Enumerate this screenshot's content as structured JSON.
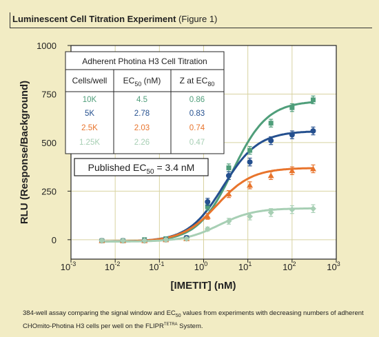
{
  "header": {
    "title_bold": "Luminescent Cell Titration Experiment",
    "title_rest": " (Figure 1)"
  },
  "chart_data": {
    "type": "scatter",
    "xscale": "log",
    "xlim": [
      0.001,
      1000
    ],
    "ylim": [
      -100,
      1000
    ],
    "xlabel": "[IMETIT] (nM)",
    "ylabel": "RLU (Response/Background)",
    "xticks": [
      "10-3",
      "10-2",
      "10-1",
      "100",
      "101",
      "102",
      "103"
    ],
    "yticks": [
      "0",
      "250",
      "500",
      "750",
      "1000"
    ],
    "grid": true,
    "table": {
      "title": "Adherent Photina H3 Cell Titration",
      "headers": [
        "Cells/well",
        "EC50 (nM)",
        "Z at EC80"
      ],
      "rows": [
        [
          "10K",
          "4.5",
          "0.86"
        ],
        [
          "5K",
          "2.78",
          "0.83"
        ],
        [
          "2.5K",
          "2.03",
          "0.74"
        ],
        [
          "1.25K",
          "2.26",
          "0.47"
        ]
      ]
    },
    "annotation": "Published EC50 = 3.4 nM",
    "series": [
      {
        "name": "10K",
        "color": "#4f9e7a",
        "marker": "square",
        "x": [
          0.005,
          0.015,
          0.046,
          0.14,
          0.41,
          1.23,
          3.7,
          11.1,
          33.3,
          100,
          300
        ],
        "y": [
          -5,
          -5,
          0,
          5,
          10,
          170,
          370,
          460,
          600,
          680,
          720
        ],
        "err": [
          8,
          8,
          8,
          8,
          8,
          18,
          20,
          20,
          20,
          20,
          20
        ]
      },
      {
        "name": "5K",
        "color": "#25508f",
        "marker": "circle",
        "x": [
          0.005,
          0.015,
          0.046,
          0.14,
          0.41,
          1.23,
          3.7,
          11.1,
          33.3,
          100,
          300
        ],
        "y": [
          -5,
          -5,
          -5,
          0,
          10,
          195,
          330,
          400,
          510,
          540,
          560
        ],
        "err": [
          8,
          8,
          8,
          8,
          8,
          18,
          20,
          20,
          20,
          20,
          20
        ]
      },
      {
        "name": "2.5K",
        "color": "#e8742c",
        "marker": "triangle",
        "x": [
          0.005,
          0.015,
          0.046,
          0.14,
          0.41,
          1.23,
          3.7,
          11.1,
          33.3,
          100,
          300
        ],
        "y": [
          -5,
          -5,
          -5,
          0,
          5,
          120,
          235,
          280,
          330,
          355,
          365
        ],
        "err": [
          8,
          8,
          8,
          8,
          8,
          15,
          18,
          18,
          20,
          20,
          20
        ]
      },
      {
        "name": "1.25K",
        "color": "#a7cfb4",
        "marker": "diamond",
        "x": [
          0.005,
          0.015,
          0.046,
          0.14,
          0.41,
          1.23,
          3.7,
          11.1,
          33.3,
          100,
          300
        ],
        "y": [
          -5,
          -5,
          -5,
          0,
          5,
          55,
          95,
          120,
          140,
          155,
          160
        ],
        "err": [
          8,
          8,
          8,
          8,
          8,
          10,
          15,
          18,
          20,
          20,
          20
        ]
      }
    ],
    "fits": [
      {
        "name": "10K",
        "color": "#4f9e7a",
        "bottom": -10,
        "top": 715,
        "ec50": 4.5,
        "hill": 1.1
      },
      {
        "name": "5K",
        "color": "#25508f",
        "bottom": -10,
        "top": 560,
        "ec50": 2.78,
        "hill": 1.1
      },
      {
        "name": "2.5K",
        "color": "#e8742c",
        "bottom": -10,
        "top": 370,
        "ec50": 2.03,
        "hill": 1.1
      },
      {
        "name": "1.25K",
        "color": "#a7cfb4",
        "bottom": -10,
        "top": 162,
        "ec50": 2.26,
        "hill": 1.1
      }
    ]
  },
  "caption": "384-well assay comparing the signal window and EC50 values from experiments with decreasing numbers of adherent CHOmito-Photina H3 cells per well on the FLIPRTETRA System."
}
